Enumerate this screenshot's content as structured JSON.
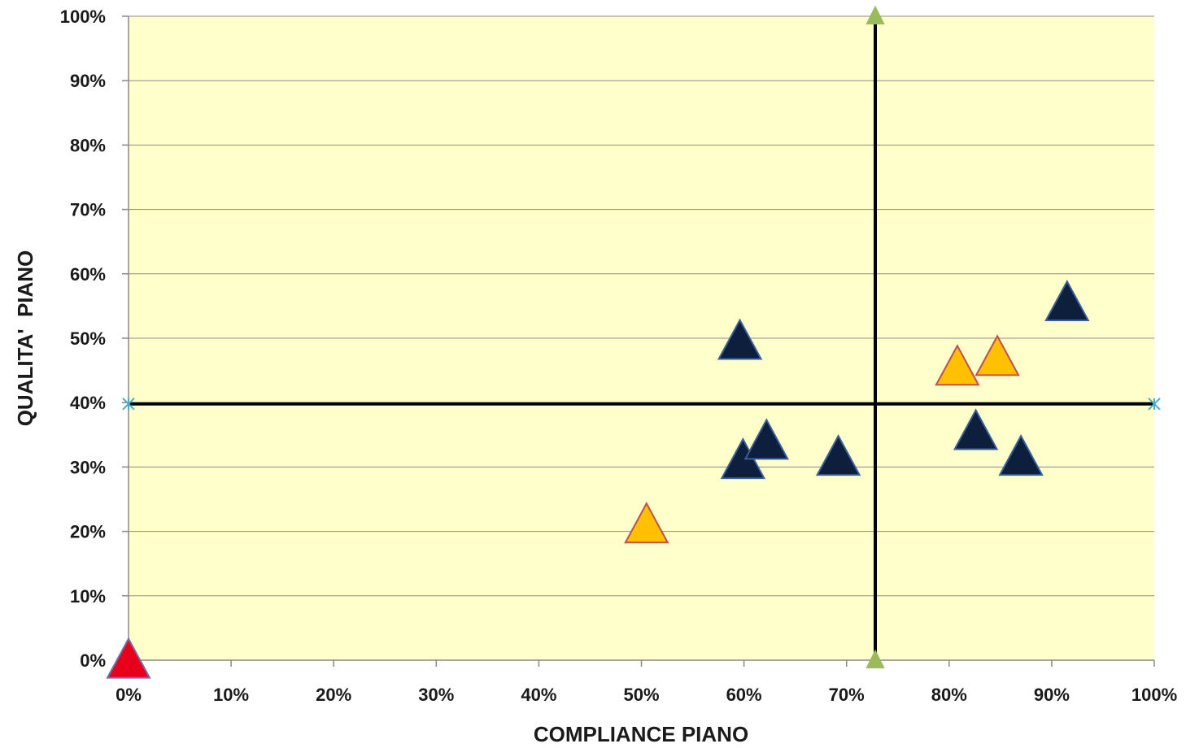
{
  "chart_data": {
    "type": "scatter",
    "title": "",
    "xlabel": "COMPLIANCE PIANO",
    "ylabel": "QUALITA'  PIANO",
    "xlim": [
      0,
      100
    ],
    "ylim": [
      0,
      100
    ],
    "x_ticks": [
      "0%",
      "10%",
      "20%",
      "30%",
      "40%",
      "50%",
      "60%",
      "70%",
      "80%",
      "90%",
      "100%"
    ],
    "y_ticks": [
      "0%",
      "10%",
      "20%",
      "30%",
      "40%",
      "50%",
      "60%",
      "70%",
      "80%",
      "90%",
      "100%"
    ],
    "grid": "horizontal",
    "plot_background": "#ffffcc",
    "colors": {
      "navy": "#0d1f3c",
      "orange": "#ffc000",
      "orange_edge": "#c0504d",
      "red": "#e8001a",
      "green": "#9bbb59",
      "cross": "#4bacc6"
    },
    "series": [
      {
        "marker": "triangle",
        "color": "#0d1f3c",
        "points": [
          {
            "x": 59.6,
            "y": 49.5
          },
          {
            "x": 59.9,
            "y": 31.0
          },
          {
            "x": 62.2,
            "y": 34.0
          },
          {
            "x": 69.2,
            "y": 31.5
          },
          {
            "x": 82.6,
            "y": 35.5
          },
          {
            "x": 87.0,
            "y": 31.5
          },
          {
            "x": 91.5,
            "y": 55.5
          }
        ]
      },
      {
        "marker": "triangle",
        "color": "#ffc000",
        "points": [
          {
            "x": 50.5,
            "y": 21.0
          },
          {
            "x": 80.8,
            "y": 45.5
          },
          {
            "x": 84.7,
            "y": 47.0
          }
        ]
      },
      {
        "marker": "triangle",
        "color": "#e8001a",
        "points": [
          {
            "x": 0.0,
            "y": 0.0
          }
        ]
      }
    ],
    "reference_lines": [
      {
        "orientation": "vertical",
        "x": 72.8,
        "y": [
          0,
          100
        ],
        "endpoint_marker": "triangle",
        "endpoint_color": "#9bbb59"
      },
      {
        "orientation": "horizontal",
        "y": 39.8,
        "x": [
          0,
          100
        ],
        "endpoint_marker": "cross",
        "endpoint_color": "#4bacc6"
      }
    ]
  }
}
